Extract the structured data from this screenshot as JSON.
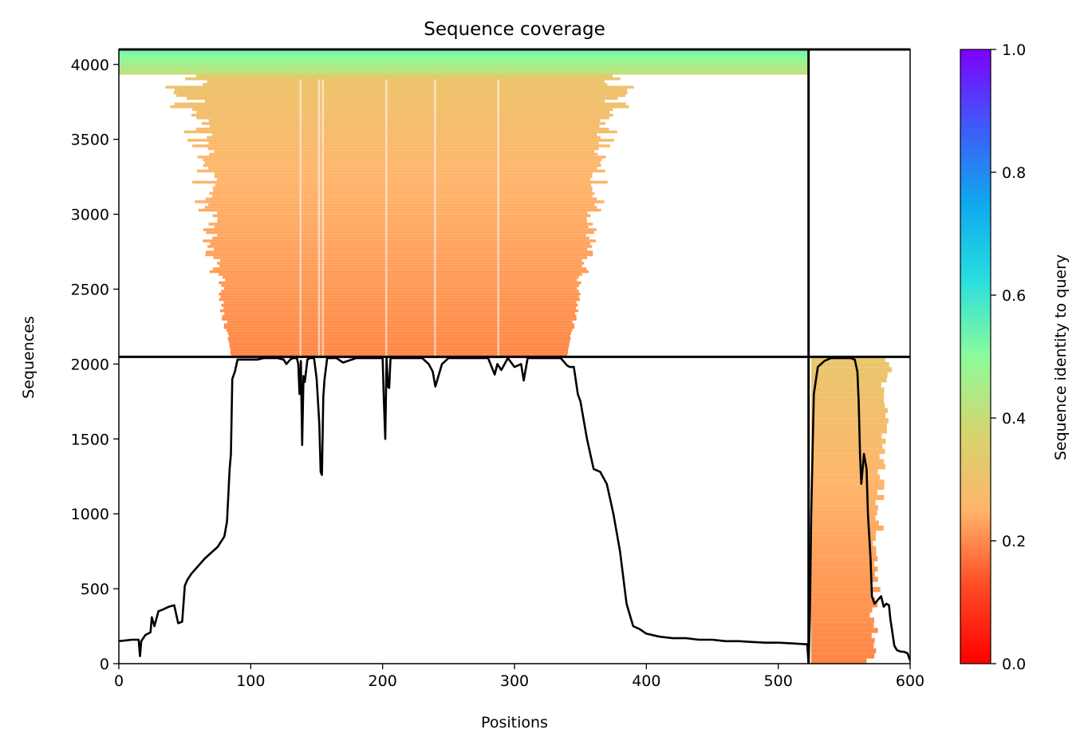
{
  "chart_data": {
    "type": "heatmap",
    "title": "Sequence coverage",
    "xlabel": "Positions",
    "ylabel": "Sequences",
    "xlim": [
      0,
      600
    ],
    "ylim": [
      0,
      4100
    ],
    "xticks": [
      0,
      100,
      200,
      300,
      400,
      500,
      600
    ],
    "yticks": [
      0,
      500,
      1000,
      1500,
      2000,
      2500,
      3000,
      3500,
      4000
    ],
    "chain_boundaries_x": [
      523
    ],
    "depth_boundaries_y": [
      2048
    ],
    "grid": false,
    "colorbar": {
      "label": "Sequence identity to query",
      "range": [
        0,
        1
      ],
      "ticks": [
        0.0,
        0.2,
        0.4,
        0.6,
        0.8,
        1.0
      ],
      "colormap": "rainbow_r",
      "colors": [
        "#ff0000",
        "#ff7a3c",
        "#ffb56b",
        "#d5d56e",
        "#8dfb9c",
        "#28dede",
        "#0fa8ee",
        "#3f5afa",
        "#7f00ff"
      ]
    },
    "coverage_line": {
      "name": "coverage",
      "color": "#000000",
      "x": [
        0,
        10,
        15,
        16,
        17,
        20,
        24,
        25,
        27,
        30,
        33,
        38,
        42,
        45,
        48,
        50,
        52,
        55,
        60,
        65,
        70,
        75,
        80,
        82,
        84,
        85,
        86,
        88,
        90,
        95,
        100,
        105,
        110,
        115,
        120,
        125,
        127,
        130,
        132,
        135,
        136,
        137,
        138,
        139,
        140,
        141,
        143,
        145,
        148,
        150,
        152,
        153,
        154,
        155,
        156,
        158,
        160,
        165,
        170,
        180,
        190,
        200,
        201,
        202,
        203,
        204,
        205,
        206,
        210,
        220,
        230,
        235,
        238,
        240,
        245,
        250,
        260,
        270,
        280,
        285,
        287,
        290,
        295,
        300,
        305,
        307,
        310,
        320,
        330,
        335,
        340,
        342,
        345,
        348,
        350,
        355,
        360,
        365,
        370,
        375,
        380,
        385,
        390,
        395,
        400,
        410,
        420,
        430,
        440,
        450,
        460,
        470,
        480,
        490,
        500,
        510,
        520,
        522,
        523,
        524,
        525,
        527,
        530,
        535,
        540,
        545,
        550,
        555,
        558,
        560,
        561,
        562,
        563,
        565,
        567,
        568,
        570,
        571,
        573,
        575,
        578,
        580,
        582,
        584,
        585,
        588,
        590,
        593,
        595,
        598,
        600
      ],
      "y": [
        150,
        160,
        160,
        50,
        150,
        190,
        210,
        310,
        250,
        350,
        360,
        380,
        390,
        270,
        280,
        520,
        560,
        600,
        650,
        700,
        740,
        780,
        850,
        950,
        1300,
        1400,
        1900,
        1950,
        2030,
        2030,
        2030,
        2030,
        2040,
        2040,
        2040,
        2030,
        2000,
        2030,
        2040,
        2040,
        2000,
        1800,
        2020,
        1460,
        1920,
        1880,
        2030,
        2040,
        2040,
        1900,
        1600,
        1280,
        1260,
        1780,
        1900,
        2040,
        2040,
        2040,
        2010,
        2040,
        2040,
        2040,
        1750,
        1500,
        2040,
        1850,
        1840,
        2040,
        2040,
        2040,
        2040,
        2000,
        1950,
        1850,
        2000,
        2040,
        2040,
        2040,
        2040,
        1930,
        2000,
        1960,
        2040,
        1980,
        2000,
        1890,
        2040,
        2040,
        2040,
        2040,
        1990,
        1980,
        1980,
        1800,
        1750,
        1500,
        1300,
        1280,
        1200,
        1000,
        750,
        400,
        250,
        230,
        200,
        180,
        170,
        170,
        160,
        160,
        150,
        150,
        145,
        140,
        140,
        135,
        130,
        130,
        0,
        300,
        1000,
        1800,
        1980,
        2020,
        2040,
        2040,
        2040,
        2040,
        2030,
        1950,
        1750,
        1400,
        1200,
        1400,
        1300,
        1000,
        700,
        450,
        400,
        420,
        450,
        380,
        400,
        390,
        300,
        120,
        90,
        80,
        80,
        70,
        20,
        0
      ]
    },
    "msa_blocks": [
      {
        "name": "chain1-paired",
        "x": [
          10,
          523
        ],
        "y": [
          2048,
          4100
        ],
        "identity_range": [
          0.15,
          0.6
        ]
      },
      {
        "name": "chain2-paired",
        "x": [
          523,
          600
        ],
        "y": [
          2048,
          4100
        ],
        "identity_range": null
      },
      {
        "name": "chain1-unpaired",
        "x": [
          0,
          523
        ],
        "y": [
          0,
          2048
        ],
        "identity_range": null
      },
      {
        "name": "chain2-unpaired",
        "x": [
          523,
          600
        ],
        "y": [
          0,
          2048
        ],
        "identity_range": [
          0.15,
          0.32
        ]
      }
    ]
  }
}
